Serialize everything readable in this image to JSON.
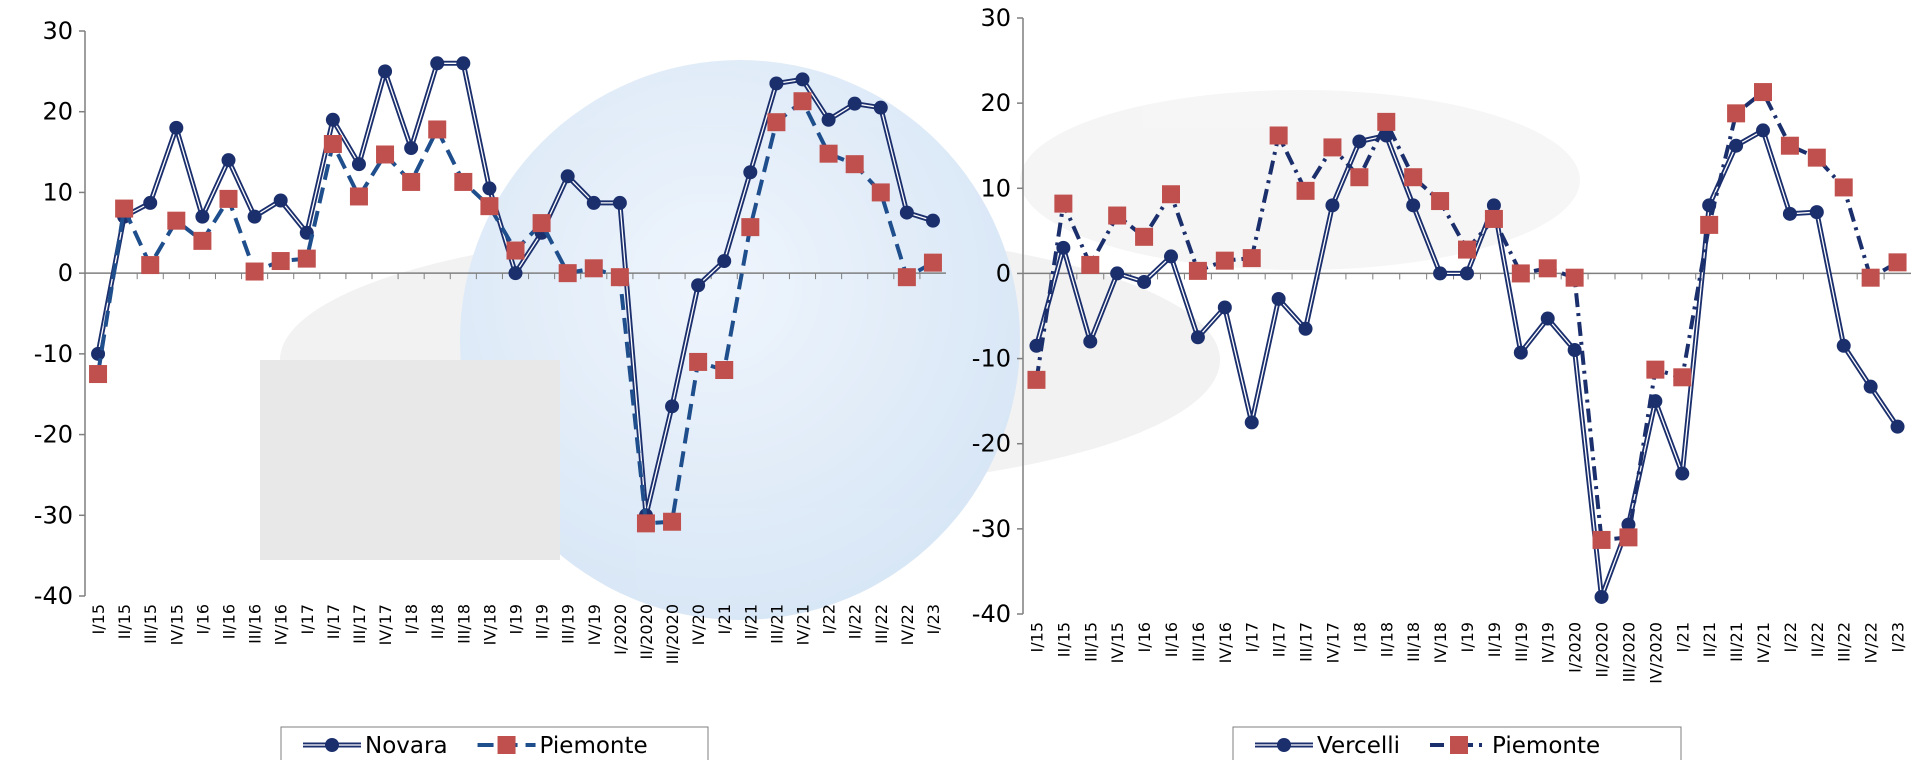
{
  "chart_data": [
    {
      "type": "line",
      "categories": [
        "I/15",
        "II/15",
        "III/15",
        "IV/15",
        "I/16",
        "II/16",
        "III/16",
        "IV/16",
        "I/17",
        "II/17",
        "III/17",
        "IV/17",
        "I/18",
        "II/18",
        "III/18",
        "IV/18",
        "I/19",
        "II/19",
        "III/19",
        "IV/19",
        "I/2020",
        "II/2020",
        "III/2020",
        "IV/20",
        "I/21",
        "II/21",
        "III/21",
        "IV/21",
        "I/22",
        "II/22",
        "III/22",
        "IV/22",
        "I/23"
      ],
      "series": [
        {
          "name": "Novara",
          "color": "#1b2f6d",
          "dash": "double",
          "marker": "circle",
          "marker_color": "#1b2f6d",
          "values": [
            -10,
            7,
            8.7,
            18,
            7,
            14,
            7,
            9,
            5,
            19,
            13.5,
            25,
            15.5,
            26,
            26,
            10.5,
            0,
            5,
            12,
            8.7,
            8.7,
            -30,
            -16.5,
            -1.5,
            1.5,
            12.5,
            23.5,
            24,
            19,
            21,
            20.5,
            7.5,
            6.5
          ]
        },
        {
          "name": "Piemonte",
          "color": "#1f4e8c",
          "dash": "dash",
          "marker": "square",
          "marker_color": "#c0504d",
          "values": [
            -12.5,
            8,
            1,
            6.5,
            4,
            9.2,
            0.2,
            1.5,
            1.8,
            16,
            9.5,
            14.7,
            11.3,
            17.8,
            11.3,
            8.3,
            2.8,
            6.2,
            0,
            0.6,
            -0.5,
            -31,
            -30.8,
            -11,
            -12,
            5.7,
            18.7,
            21.3,
            14.8,
            13.5,
            10,
            -0.5,
            1.3
          ]
        }
      ],
      "ylim": [
        -40,
        30
      ],
      "yticks": [
        -40,
        -30,
        -20,
        -10,
        0,
        10,
        20,
        30
      ]
    },
    {
      "type": "line",
      "categories": [
        "I/15",
        "II/15",
        "III/15",
        "IV/15",
        "I/16",
        "II/16",
        "III/16",
        "IV/16",
        "I/17",
        "II/17",
        "III/17",
        "IV/17",
        "I/18",
        "II/18",
        "III/18",
        "IV/18",
        "I/19",
        "II/19",
        "III/19",
        "IV/19",
        "I/2020",
        "II/2020",
        "III/2020",
        "IV/2020",
        "I/21",
        "II/21",
        "III/21",
        "IV/21",
        "I/22",
        "II/22",
        "III/22",
        "IV/22",
        "I/23"
      ],
      "series": [
        {
          "name": "Vercelli",
          "color": "#1b2f6d",
          "dash": "double",
          "marker": "circle",
          "marker_color": "#1b2f6d",
          "values": [
            -8.5,
            3,
            -8,
            0,
            -1,
            2,
            -7.5,
            -4,
            -17.5,
            -3,
            -6.5,
            8,
            15.5,
            16.2,
            8,
            0,
            0,
            8,
            -9.3,
            -5.3,
            -9,
            -38,
            -29.5,
            -15,
            -23.5,
            8,
            15,
            16.8,
            7,
            7.2,
            -8.5,
            -13.3,
            -18
          ]
        },
        {
          "name": "Piemonte",
          "color": "#1b2f6d",
          "dash": "dashdot",
          "marker": "square",
          "marker_color": "#c0504d",
          "values": [
            -12.5,
            8.2,
            1,
            6.8,
            4.3,
            9.3,
            0.3,
            1.5,
            1.8,
            16.2,
            9.7,
            14.8,
            11.3,
            17.8,
            11.3,
            8.5,
            2.8,
            6.4,
            0,
            0.6,
            -0.5,
            -31.3,
            -31,
            -11.3,
            -12.2,
            5.7,
            18.8,
            21.3,
            15,
            13.6,
            10.1,
            -0.5,
            1.3
          ]
        }
      ],
      "ylim": [
        -40,
        30
      ],
      "yticks": [
        -40,
        -30,
        -20,
        -10,
        0,
        10,
        20,
        30
      ]
    }
  ]
}
